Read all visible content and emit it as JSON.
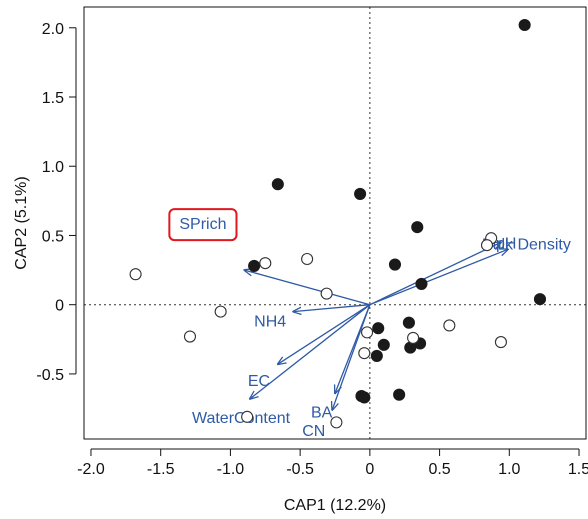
{
  "chart_data": {
    "type": "scatter",
    "xlabel": "CAP1 (12.2%)",
    "ylabel": "CAP2 (5.1%)",
    "xlim": [
      -2.05,
      1.55
    ],
    "ylim": [
      -0.97,
      2.15
    ],
    "x_ticks": [
      -2.0,
      -1.5,
      -1.0,
      -0.5,
      0,
      0.5,
      1.0,
      1.5
    ],
    "x_tick_labels": [
      "-2.0",
      "-1.5",
      "-1.0",
      "-0.5",
      "0",
      "0.5",
      "1.0",
      "1.5"
    ],
    "y_ticks": [
      -0.5,
      0,
      0.5,
      1.0,
      1.5,
      2.0
    ],
    "y_tick_labels": [
      "-0.5",
      "0",
      "0.5",
      "1.0",
      "1.5",
      "2.0"
    ],
    "reference_lines": {
      "x": 0,
      "y": 0,
      "style": "dotted"
    },
    "grid": false,
    "colors": {
      "vector": "#2f5aa6",
      "filled_point": "#1a1a1a",
      "open_point": "#333333",
      "highlight_box": "#e0191f"
    },
    "series": [
      {
        "marker": "filled-circle",
        "points": [
          {
            "x": 1.11,
            "y": 2.02
          },
          {
            "x": -0.66,
            "y": 0.87
          },
          {
            "x": -0.07,
            "y": 0.8
          },
          {
            "x": 0.34,
            "y": 0.56
          },
          {
            "x": -0.83,
            "y": 0.28
          },
          {
            "x": 0.18,
            "y": 0.29
          },
          {
            "x": 0.37,
            "y": 0.15
          },
          {
            "x": 1.22,
            "y": 0.04
          },
          {
            "x": 0.28,
            "y": -0.13
          },
          {
            "x": 0.06,
            "y": -0.17
          },
          {
            "x": 0.1,
            "y": -0.29
          },
          {
            "x": 0.05,
            "y": -0.37
          },
          {
            "x": 0.29,
            "y": -0.31
          },
          {
            "x": 0.36,
            "y": -0.28
          },
          {
            "x": -0.06,
            "y": -0.66
          },
          {
            "x": -0.04,
            "y": -0.67
          },
          {
            "x": 0.21,
            "y": -0.65
          }
        ]
      },
      {
        "marker": "open-circle",
        "points": [
          {
            "x": -1.68,
            "y": 0.22
          },
          {
            "x": -0.75,
            "y": 0.3
          },
          {
            "x": -0.45,
            "y": 0.33
          },
          {
            "x": -0.31,
            "y": 0.08
          },
          {
            "x": 0.87,
            "y": 0.48
          },
          {
            "x": 0.84,
            "y": 0.43
          },
          {
            "x": -1.07,
            "y": -0.05
          },
          {
            "x": -1.29,
            "y": -0.23
          },
          {
            "x": -0.02,
            "y": -0.2
          },
          {
            "x": 0.31,
            "y": -0.24
          },
          {
            "x": 0.57,
            "y": -0.15
          },
          {
            "x": 0.94,
            "y": -0.27
          },
          {
            "x": -0.04,
            "y": -0.35
          },
          {
            "x": -0.88,
            "y": -0.81
          },
          {
            "x": -0.24,
            "y": -0.85
          }
        ]
      }
    ],
    "vectors": [
      {
        "label": "SPrich",
        "x": -0.9,
        "y": 0.25,
        "highlighted": true
      },
      {
        "label": "pH",
        "x": 0.94,
        "y": 0.45
      },
      {
        "label": "Bulk Density",
        "x": 0.99,
        "y": 0.4
      },
      {
        "label": "NH4",
        "x": -0.55,
        "y": -0.05
      },
      {
        "label": "EC",
        "x": -0.66,
        "y": -0.43
      },
      {
        "label": "WaterContent",
        "x": -0.86,
        "y": -0.68
      },
      {
        "label": "BA",
        "x": -0.25,
        "y": -0.64
      },
      {
        "label": "CN",
        "x": -0.27,
        "y": -0.76
      }
    ]
  }
}
